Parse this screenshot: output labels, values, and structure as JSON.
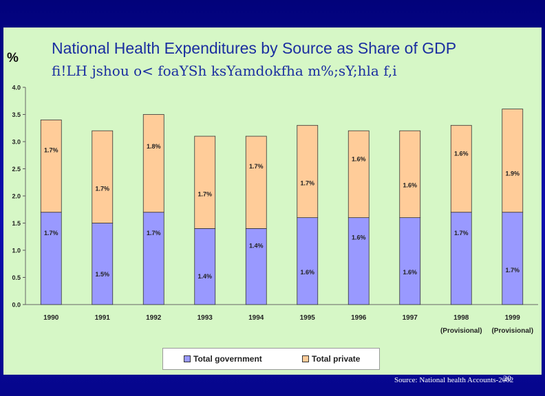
{
  "colors": {
    "government": "#9999ff",
    "private": "#ffcc99",
    "panel": "#d6f7c6",
    "title": "#1b2fa0"
  },
  "slide": {
    "title_en": "National Health Expenditures by Source as Share of GDP",
    "title_si": "fi!LH jshou o< foaYSh ksYamdokfha m%;sY;hla f,i",
    "source": "Source: National health Accounts-2002",
    "page_number": "20"
  },
  "chart_data": {
    "type": "bar",
    "stacked": true,
    "unit_label": "%",
    "categories": [
      "1990",
      "1991",
      "1992",
      "1993",
      "1994",
      "1995",
      "1996",
      "1997",
      "1998",
      "1999"
    ],
    "category_sublabels": [
      "",
      "",
      "",
      "",
      "",
      "",
      "",
      "",
      "(Provisional)",
      "(Provisional)"
    ],
    "series": [
      {
        "name": "Total government",
        "values": [
          1.7,
          1.5,
          1.7,
          1.4,
          1.4,
          1.6,
          1.6,
          1.6,
          1.7,
          1.7
        ],
        "labels": [
          "1.7%",
          "1.5%",
          "1.7%",
          "1.4%",
          "1.4%",
          "1.6%",
          "1.6%",
          "1.6%",
          "1.7%",
          "1.7%"
        ]
      },
      {
        "name": "Total private",
        "values": [
          1.7,
          1.7,
          1.8,
          1.7,
          1.7,
          1.7,
          1.6,
          1.6,
          1.6,
          1.9
        ],
        "labels": [
          "1.7%",
          "1.7%",
          "1.8%",
          "1.7%",
          "1.7%",
          "1.7%",
          "1.6%",
          "1.6%",
          "1.6%",
          "1.9%"
        ]
      }
    ],
    "yticks": [
      "0.0",
      "0.5",
      "1.0",
      "1.5",
      "2.0",
      "2.5",
      "3.0",
      "3.5",
      "4.0"
    ],
    "ylim": [
      0,
      4
    ],
    "legend": [
      "Total government",
      "Total private"
    ],
    "legend_position": "bottom"
  }
}
